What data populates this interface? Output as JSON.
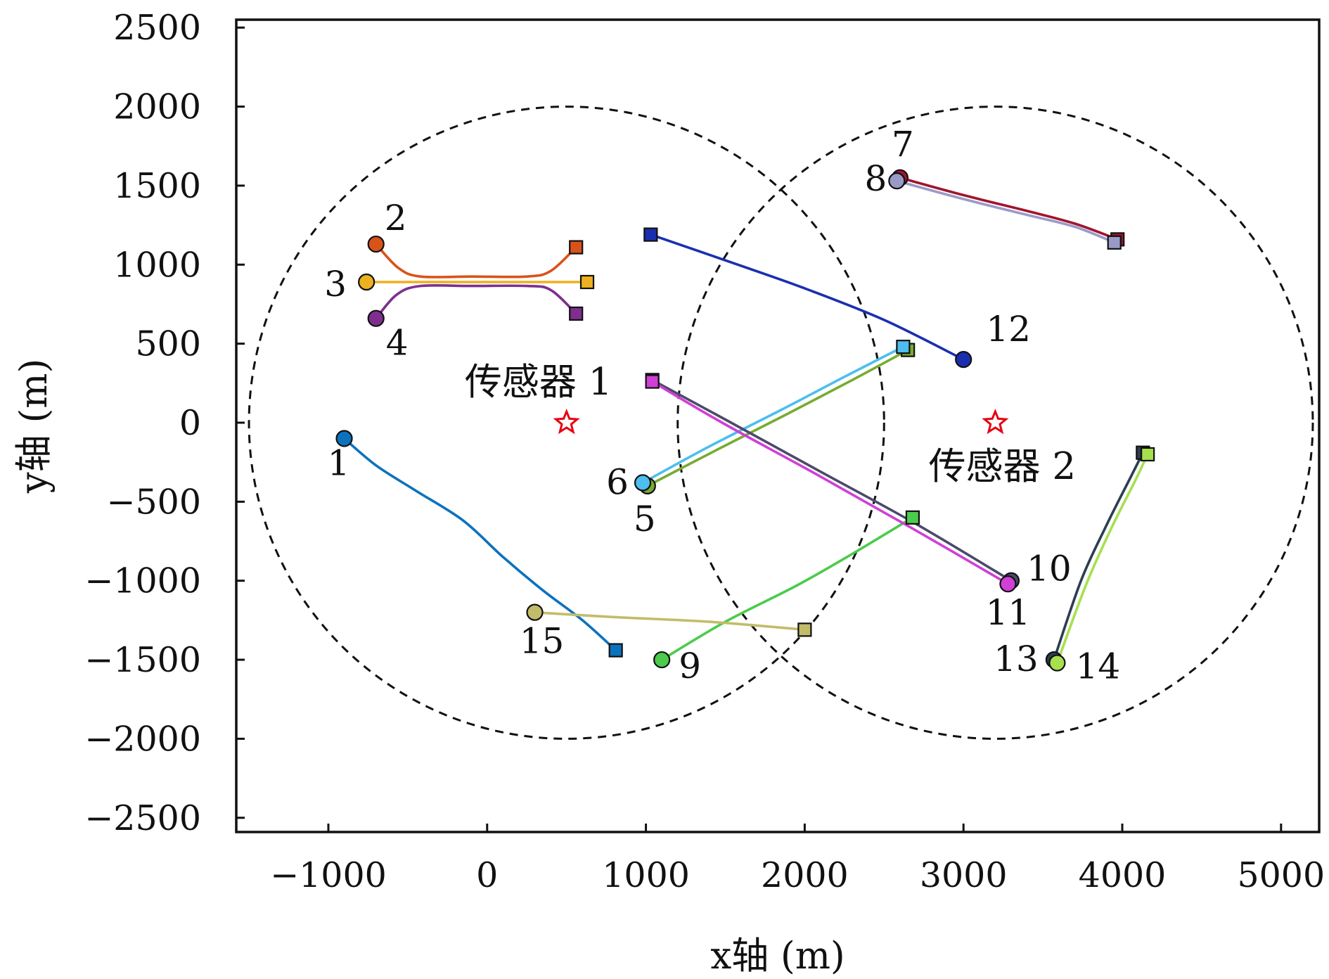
{
  "chart_data": {
    "type": "line",
    "xlabel": "x轴 (m)",
    "ylabel": "y轴 (m)",
    "xlim": [
      -1580,
      5240
    ],
    "ylim": [
      -2590,
      2550
    ],
    "xticks": [
      -1000,
      0,
      1000,
      2000,
      3000,
      4000,
      5000
    ],
    "yticks": [
      -2500,
      -2000,
      -1500,
      -1000,
      -500,
      0,
      500,
      1000,
      1500,
      2000,
      2500
    ],
    "xtick_labels": [
      "−1000",
      "0",
      "1000",
      "2000",
      "3000",
      "4000",
      "5000"
    ],
    "ytick_labels": [
      "−2500",
      "−2000",
      "−1500",
      "−1000",
      "−500",
      "0",
      "500",
      "1000",
      "1500",
      "2000",
      "2500"
    ],
    "grid": false,
    "coverage_circles": [
      {
        "center": [
          500,
          0
        ],
        "radius": 2000
      },
      {
        "center": [
          3200,
          0
        ],
        "radius": 2000
      }
    ],
    "sensors": [
      {
        "label": "传感器 1",
        "x": 500,
        "y": 0,
        "color": "#e60012"
      },
      {
        "label": "传感器 2",
        "x": 3200,
        "y": 0,
        "color": "#e60012"
      }
    ],
    "series": [
      {
        "label": "1",
        "color": "#0c72bd",
        "start": [
          -900,
          -100
        ],
        "end": [
          810,
          -1440
        ],
        "points": [
          [
            -900,
            -100
          ],
          [
            -700,
            -270
          ],
          [
            -450,
            -430
          ],
          [
            -150,
            -620
          ],
          [
            100,
            -850
          ],
          [
            350,
            -1060
          ],
          [
            600,
            -1250
          ],
          [
            810,
            -1440
          ]
        ]
      },
      {
        "label": "2",
        "color": "#d95319",
        "start": [
          -700,
          1130
        ],
        "end": [
          560,
          1110
        ],
        "points": [
          [
            -700,
            1130
          ],
          [
            -560,
            980
          ],
          [
            -420,
            925
          ],
          [
            -100,
            925
          ],
          [
            250,
            925
          ],
          [
            400,
            960
          ],
          [
            560,
            1110
          ]
        ]
      },
      {
        "label": "3",
        "color": "#edb120",
        "start": [
          -760,
          890
        ],
        "end": [
          630,
          890
        ],
        "points": [
          [
            -760,
            890
          ],
          [
            630,
            890
          ]
        ]
      },
      {
        "label": "4",
        "color": "#7e2f8e",
        "start": [
          -700,
          660
        ],
        "end": [
          560,
          690
        ],
        "points": [
          [
            -700,
            660
          ],
          [
            -570,
            810
          ],
          [
            -420,
            865
          ],
          [
            -100,
            865
          ],
          [
            250,
            865
          ],
          [
            400,
            840
          ],
          [
            560,
            690
          ]
        ]
      },
      {
        "label": "5",
        "color": "#77ac30",
        "start": [
          1010,
          -400
        ],
        "end": [
          2650,
          460
        ],
        "points": [
          [
            1010,
            -400
          ],
          [
            1450,
            -170
          ],
          [
            1900,
            60
          ],
          [
            2300,
            270
          ],
          [
            2650,
            460
          ]
        ]
      },
      {
        "label": "6",
        "color": "#4dbeee",
        "start": [
          980,
          -380
        ],
        "end": [
          2620,
          480
        ],
        "points": [
          [
            980,
            -380
          ],
          [
            1400,
            -150
          ],
          [
            1850,
            80
          ],
          [
            2250,
            290
          ],
          [
            2620,
            480
          ]
        ]
      },
      {
        "label": "7",
        "color": "#a2142f",
        "start": [
          2600,
          1550
        ],
        "end": [
          3970,
          1160
        ],
        "points": [
          [
            2600,
            1550
          ],
          [
            3000,
            1440
          ],
          [
            3400,
            1340
          ],
          [
            3700,
            1260
          ],
          [
            3970,
            1160
          ]
        ]
      },
      {
        "label": "8",
        "color": "#9a9ac9",
        "start": [
          2580,
          1530
        ],
        "end": [
          3950,
          1140
        ],
        "points": [
          [
            2580,
            1530
          ],
          [
            3000,
            1415
          ],
          [
            3400,
            1315
          ],
          [
            3700,
            1240
          ],
          [
            3950,
            1140
          ]
        ]
      },
      {
        "label": "9",
        "color": "#4ccb4c",
        "start": [
          1100,
          -1500
        ],
        "end": [
          2680,
          -600
        ],
        "points": [
          [
            1100,
            -1500
          ],
          [
            1500,
            -1260
          ],
          [
            1950,
            -1030
          ],
          [
            2300,
            -830
          ],
          [
            2680,
            -600
          ]
        ]
      },
      {
        "label": "10",
        "color": "#4a4a6a",
        "start": [
          3300,
          -1000
        ],
        "end": [
          1040,
          270
        ],
        "points": [
          [
            3300,
            -1000
          ],
          [
            2700,
            -640
          ],
          [
            2100,
            -310
          ],
          [
            1500,
            20
          ],
          [
            1040,
            270
          ]
        ]
      },
      {
        "label": "11",
        "color": "#d03fd6",
        "start": [
          3280,
          -1020
        ],
        "end": [
          1040,
          260
        ],
        "points": [
          [
            3280,
            -1020
          ],
          [
            2680,
            -670
          ],
          [
            2080,
            -330
          ],
          [
            1480,
            0
          ],
          [
            1040,
            260
          ]
        ]
      },
      {
        "label": "12",
        "color": "#1a2fb0",
        "start": [
          3000,
          400
        ],
        "end": [
          1030,
          1190
        ],
        "points": [
          [
            3000,
            400
          ],
          [
            2500,
            650
          ],
          [
            2000,
            850
          ],
          [
            1550,
            1010
          ],
          [
            1030,
            1190
          ]
        ]
      },
      {
        "label": "13",
        "color": "#2c3e50",
        "start": [
          3570,
          -1500
        ],
        "end": [
          4130,
          -190
        ],
        "points": [
          [
            3570,
            -1500
          ],
          [
            3740,
            -1000
          ],
          [
            3900,
            -650
          ],
          [
            4050,
            -350
          ],
          [
            4130,
            -190
          ]
        ]
      },
      {
        "label": "14",
        "color": "#a6e04e",
        "start": [
          3590,
          -1520
        ],
        "end": [
          4160,
          -200
        ],
        "points": [
          [
            3590,
            -1520
          ],
          [
            3770,
            -1030
          ],
          [
            3930,
            -670
          ],
          [
            4080,
            -370
          ],
          [
            4160,
            -200
          ]
        ]
      },
      {
        "label": "15",
        "color": "#c2bc6a",
        "start": [
          300,
          -1200
        ],
        "end": [
          2000,
          -1310
        ],
        "points": [
          [
            300,
            -1200
          ],
          [
            800,
            -1230
          ],
          [
            1400,
            -1260
          ],
          [
            2000,
            -1310
          ]
        ]
      }
    ]
  }
}
